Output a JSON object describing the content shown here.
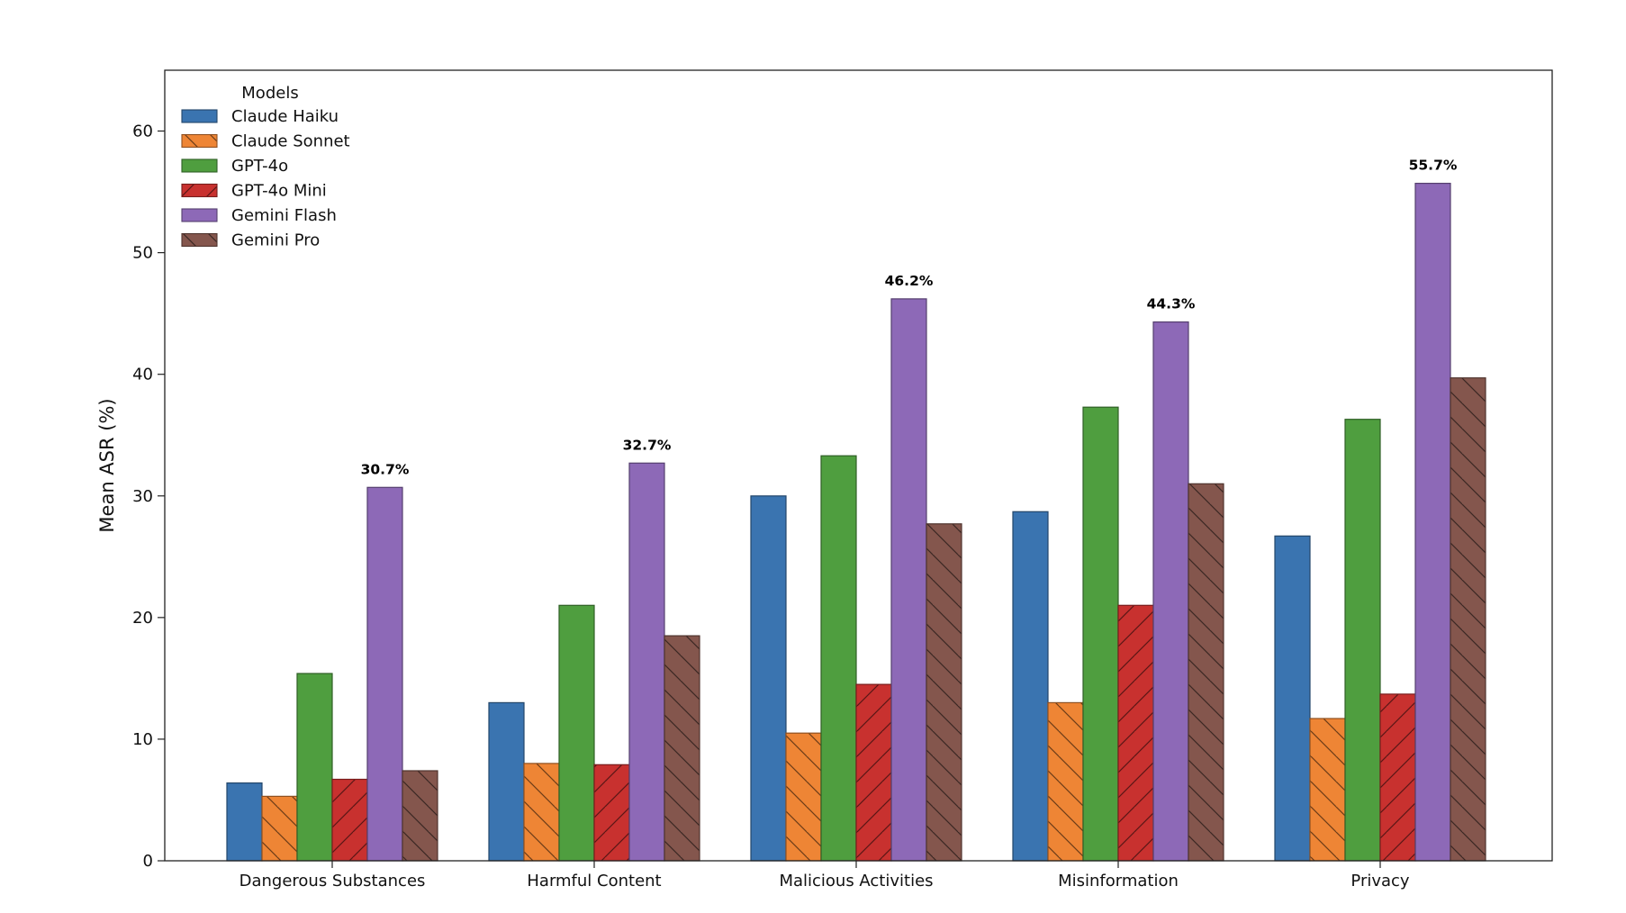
{
  "chart_data": {
    "type": "bar",
    "ylabel": "Mean ASR (%)",
    "xlabel": "",
    "ylim": [
      0,
      65
    ],
    "yticks": [
      0,
      10,
      20,
      30,
      40,
      50,
      60
    ],
    "categories": [
      "Dangerous Substances",
      "Harmful Content",
      "Malicious Activities",
      "Misinformation",
      "Privacy"
    ],
    "legend": {
      "title": "Models",
      "placement": "upper-left"
    },
    "series": [
      {
        "name": "Claude Haiku",
        "color": "#3a74b0",
        "hatch": "none",
        "values": [
          6.4,
          13.0,
          30.0,
          28.7,
          26.7
        ]
      },
      {
        "name": "Claude Sonnet",
        "color": "#ee8535",
        "hatch": "back-slash",
        "values": [
          5.3,
          8.0,
          10.5,
          13.0,
          11.7
        ]
      },
      {
        "name": "GPT-4o",
        "color": "#4f9e3f",
        "hatch": "none",
        "values": [
          15.4,
          21.0,
          33.3,
          37.3,
          36.3
        ]
      },
      {
        "name": "GPT-4o Mini",
        "color": "#c8312f",
        "hatch": "forward-slash",
        "values": [
          6.7,
          7.9,
          14.5,
          21.0,
          13.7
        ]
      },
      {
        "name": "Gemini Flash",
        "color": "#8d69b7",
        "hatch": "none",
        "values": [
          30.7,
          32.7,
          46.2,
          44.3,
          55.7
        ]
      },
      {
        "name": "Gemini Pro",
        "color": "#84564d",
        "hatch": "back-slash",
        "values": [
          7.4,
          18.5,
          27.7,
          31.0,
          39.7
        ]
      }
    ],
    "data_labels": [
      "30.7%",
      "32.7%",
      "46.2%",
      "44.3%",
      "55.7%"
    ],
    "labeled_series": "Gemini Flash",
    "grid": false
  }
}
